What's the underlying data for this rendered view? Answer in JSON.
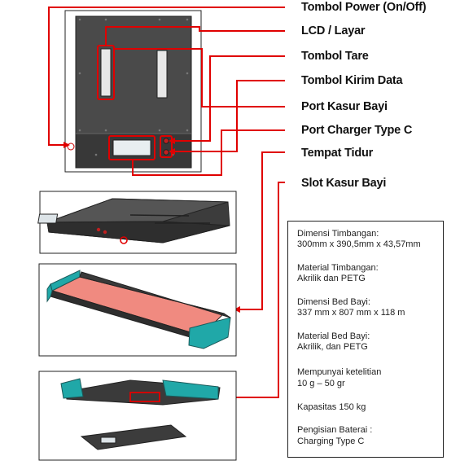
{
  "labels": {
    "power": "Tombol Power (On/Off)",
    "lcd": "LCD / Layar",
    "tare": "Tombol Tare",
    "send": "Tombol Kirim Data",
    "bed_port": "Port Kasur Bayi",
    "charger_port": "Port Charger Type C",
    "bed_place": "Tempat Tidur",
    "bed_slot": "Slot Kasur Bayi"
  },
  "specs": [
    {
      "title": "Dimensi Timbangan:",
      "value": "300mm x 390,5mm x 43,57mm"
    },
    {
      "title": "Material Timbangan:",
      "value": "Akrilik dan PETG"
    },
    {
      "title": "Dimensi Bed Bayi:",
      "value": "337 mm x 807 mm x 118 m"
    },
    {
      "title": "Material Bed Bayi:",
      "value": "Akrilik, dan PETG"
    },
    {
      "title": "Mempunyai ketelitian",
      "value": "10 g – 50 gr"
    },
    {
      "title": "Kapasitas 150 kg",
      "value": ""
    },
    {
      "title": "Pengisian Baterai :",
      "value": "Charging Type C"
    }
  ],
  "colors": {
    "callout": "#e00000",
    "device_dark": "#3a3a3a",
    "bed_surface": "#f08a80",
    "bed_frame": "#20a8a8"
  }
}
